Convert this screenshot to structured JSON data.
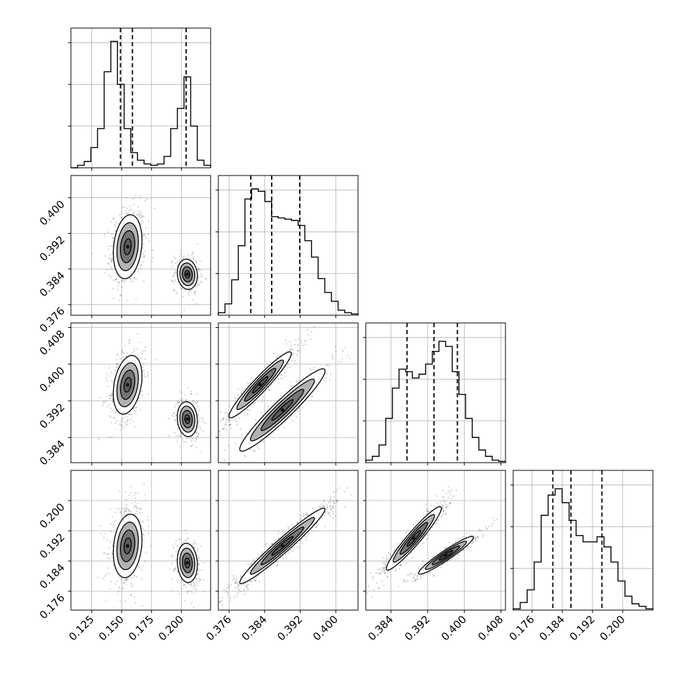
{
  "chart_data": {
    "type": "corner",
    "title": "",
    "parameters": [
      {
        "range": [
          0.1075,
          0.2245
        ],
        "ticks": [
          0.125,
          0.15,
          0.175,
          0.2
        ],
        "tick_labels": [
          "0.125",
          "0.150",
          "0.175",
          "0.200"
        ],
        "quantiles": [
          0.149,
          0.159,
          0.204
        ]
      },
      {
        "range": [
          0.3736,
          0.405
        ],
        "ticks": [
          0.376,
          0.384,
          0.392,
          0.4
        ],
        "tick_labels": [
          "0.376",
          "0.384",
          "0.392",
          "0.400"
        ],
        "quantiles": [
          0.3809,
          0.3856,
          0.3919
        ]
      },
      {
        "range": [
          0.3785,
          0.409
        ],
        "ticks": [
          0.384,
          0.392,
          0.4,
          0.408
        ],
        "tick_labels": [
          "0.384",
          "0.392",
          "0.400",
          "0.408"
        ],
        "quantiles": [
          0.3875,
          0.3934,
          0.3985
        ]
      },
      {
        "range": [
          0.171,
          0.208
        ],
        "ticks": [
          0.176,
          0.184,
          0.192,
          0.2
        ],
        "tick_labels": [
          "0.176",
          "0.184",
          "0.192",
          "0.200"
        ],
        "quantiles": [
          0.1815,
          0.1863,
          0.1945
        ]
      }
    ],
    "histograms": [
      [
        0,
        0.02,
        0.05,
        0.16,
        0.31,
        0.76,
        1.0,
        0.66,
        0.31,
        0.12,
        0.06,
        0.03,
        0.02,
        0.03,
        0.09,
        0.31,
        0.47,
        0.72,
        0.33,
        0.06,
        0.02
      ],
      [
        0.02,
        0.09,
        0.28,
        0.55,
        0.92,
        1.0,
        0.98,
        0.9,
        0.78,
        0.77,
        0.76,
        0.75,
        0.71,
        0.59,
        0.46,
        0.29,
        0.18,
        0.11,
        0.04,
        0.02,
        0.01
      ],
      [
        0.02,
        0.05,
        0.14,
        0.35,
        0.59,
        0.74,
        0.72,
        0.67,
        0.7,
        0.78,
        0.88,
        0.96,
        0.92,
        0.72,
        0.54,
        0.35,
        0.2,
        0.1,
        0.05,
        0.02,
        0.01
      ],
      [
        0.01,
        0.06,
        0.16,
        0.38,
        0.75,
        0.91,
        0.96,
        0.85,
        0.71,
        0.59,
        0.54,
        0.54,
        0.58,
        0.5,
        0.38,
        0.23,
        0.11,
        0.05,
        0.03,
        0.01
      ]
    ],
    "modes": [
      [
        {
          "mx": 0.155,
          "my": 0.389,
          "sx": 0.006,
          "sy": 0.0036,
          "rho": 0.2,
          "w": 0.62
        },
        {
          "mx": 0.205,
          "my": 0.3828,
          "sx": 0.0042,
          "sy": 0.0017,
          "rho": -0.1,
          "w": 0.38
        }
      ],
      [
        {
          "mx": 0.155,
          "my": 0.3955,
          "sx": 0.006,
          "sy": 0.0032,
          "rho": 0.3,
          "w": 0.62
        },
        {
          "mx": 0.205,
          "my": 0.388,
          "sx": 0.0042,
          "sy": 0.0019,
          "rho": -0.1,
          "w": 0.38
        }
      ],
      [
        {
          "mx": 0.383,
          "my": 0.3955,
          "sx": 0.0035,
          "sy": 0.0036,
          "rho": 0.95,
          "w": 0.62
        },
        {
          "mx": 0.388,
          "my": 0.39,
          "sx": 0.0048,
          "sy": 0.0045,
          "rho": 0.95,
          "w": 0.38
        }
      ],
      [
        {
          "mx": 0.155,
          "my": 0.188,
          "sx": 0.006,
          "sy": 0.0042,
          "rho": 0.2,
          "w": 0.62
        },
        {
          "mx": 0.205,
          "my": 0.1835,
          "sx": 0.0042,
          "sy": 0.0026,
          "rho": -0.1,
          "w": 0.38
        }
      ],
      [
        {
          "mx": 0.388,
          "my": 0.188,
          "sx": 0.0048,
          "sy": 0.005,
          "rho": 0.97,
          "w": 1.0
        }
      ],
      [
        {
          "mx": 0.389,
          "my": 0.19,
          "sx": 0.003,
          "sy": 0.0042,
          "rho": 0.95,
          "w": 0.62
        },
        {
          "mx": 0.396,
          "my": 0.1855,
          "sx": 0.003,
          "sy": 0.0025,
          "rho": 0.95,
          "w": 0.38
        }
      ]
    ],
    "contour_levels": [
      0.5,
      1.0,
      1.5,
      2.0
    ],
    "grid": true,
    "colors": {
      "line": "#000000",
      "grid": "#b0b0b0",
      "scatter": "#000000",
      "density": "#555555"
    }
  }
}
